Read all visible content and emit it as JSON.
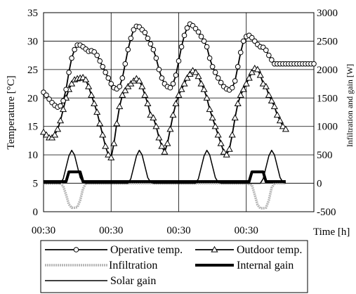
{
  "chart_data": {
    "type": "line",
    "ylabel": "Temperature [°C]",
    "y2label": "Infiltration and gain [W]",
    "xlabel": "Time [h]",
    "x_ticks": [
      "00:30",
      "00:30",
      "00:30",
      "00:30"
    ],
    "y_ticks": [
      "0",
      "5",
      "10",
      "15",
      "20",
      "25",
      "30",
      "35"
    ],
    "y2_ticks": [
      "-500",
      "0",
      "500",
      "1000",
      "1500",
      "2000",
      "2500",
      "3000"
    ],
    "ylim": [
      0,
      35
    ],
    "y2lim": [
      -500,
      3000
    ],
    "xlim": [
      0,
      96
    ],
    "x_unit": "hours",
    "grid": true,
    "legend_position": "bottom",
    "series": [
      {
        "name": "Operative temp.",
        "axis": "left",
        "marker": "circle",
        "x": [
          0,
          1,
          2,
          3,
          4,
          5,
          6,
          7,
          8,
          9,
          10,
          11,
          12,
          13,
          14,
          15,
          16,
          17,
          18,
          19,
          20,
          21,
          22,
          23,
          24,
          25,
          26,
          27,
          28,
          29,
          30,
          31,
          32,
          33,
          34,
          35,
          36,
          37,
          38,
          39,
          40,
          41,
          42,
          43,
          44,
          45,
          46,
          47,
          48,
          49,
          50,
          51,
          52,
          53,
          54,
          55,
          56,
          57,
          58,
          59,
          60,
          61,
          62,
          63,
          64,
          65,
          66,
          67,
          68,
          69,
          70,
          71,
          72,
          73,
          74,
          75,
          76,
          77,
          78,
          79,
          80,
          81,
          82,
          83,
          84,
          85,
          86,
          87,
          88,
          89,
          90,
          91,
          92,
          93,
          94,
          95,
          96
        ],
        "values": [
          21.0,
          20.5,
          19.8,
          19.2,
          18.7,
          18.4,
          18.6,
          19.5,
          21.5,
          24.5,
          27.0,
          28.5,
          29.3,
          29.3,
          29.0,
          28.6,
          28.2,
          28.3,
          28.1,
          27.5,
          26.5,
          25.5,
          24.5,
          23.5,
          22.5,
          21.8,
          21.6,
          22.0,
          23.5,
          26.0,
          28.5,
          30.5,
          32.0,
          32.6,
          32.5,
          32.0,
          31.5,
          30.5,
          29.5,
          28.5,
          27.0,
          25.0,
          23.5,
          22.5,
          22.0,
          21.8,
          22.5,
          24.0,
          26.5,
          29.0,
          31.0,
          32.3,
          33.0,
          32.7,
          32.2,
          31.6,
          30.8,
          30.0,
          29.0,
          27.0,
          25.5,
          24.5,
          23.5,
          22.7,
          22.0,
          21.6,
          21.4,
          21.8,
          23.0,
          25.5,
          28.0,
          30.0,
          30.8,
          31.0,
          30.6,
          30.0,
          29.4,
          29.0,
          28.9,
          28.4,
          27.5,
          26.7,
          26.0,
          26.0,
          26.0,
          26.0,
          26.0,
          26.0,
          26.0,
          26.0,
          26.0,
          26.0,
          26.0,
          26.0,
          26.0,
          26.0,
          26.0
        ]
      },
      {
        "name": "Outdoor temp.",
        "axis": "left",
        "marker": "triangle",
        "x": [
          0,
          1,
          2,
          3,
          4,
          5,
          6,
          7,
          8,
          9,
          10,
          11,
          12,
          13,
          14,
          15,
          16,
          17,
          18,
          19,
          20,
          21,
          22,
          23,
          24,
          25,
          26,
          27,
          28,
          29,
          30,
          31,
          32,
          33,
          34,
          35,
          36,
          37,
          38,
          39,
          40,
          41,
          42,
          43,
          44,
          45,
          46,
          47,
          48,
          49,
          50,
          51,
          52,
          53,
          54,
          55,
          56,
          57,
          58,
          59,
          60,
          61,
          62,
          63,
          64,
          65,
          66,
          67,
          68,
          69,
          70,
          71,
          72,
          73,
          74,
          75,
          76,
          77,
          78,
          79,
          80,
          81,
          82,
          83,
          84,
          85,
          86
        ],
        "values": [
          14.0,
          13.5,
          13.0,
          13.0,
          13.5,
          14.5,
          16.0,
          18.0,
          20.0,
          21.5,
          22.5,
          23.2,
          23.4,
          23.5,
          23.6,
          23.2,
          22.0,
          20.5,
          19.0,
          17.5,
          15.5,
          13.5,
          11.5,
          10.0,
          9.5,
          12.0,
          15.5,
          18.5,
          20.5,
          21.3,
          22.0,
          22.5,
          23.0,
          23.4,
          23.0,
          22.0,
          20.5,
          19.0,
          17.0,
          16.5,
          15.0,
          13.0,
          11.5,
          10.5,
          12.0,
          14.5,
          17.0,
          19.0,
          20.5,
          21.5,
          22.5,
          23.5,
          24.2,
          24.8,
          24.5,
          23.8,
          22.5,
          21.5,
          20.0,
          18.0,
          16.5,
          15.0,
          13.5,
          12.0,
          10.5,
          10.0,
          11.0,
          13.5,
          16.5,
          19.0,
          20.5,
          21.5,
          22.5,
          23.5,
          24.5,
          25.2,
          25.0,
          24.0,
          22.5,
          22.0,
          20.5,
          19.5,
          18.5,
          17.0,
          16.0,
          15.0,
          14.5
        ]
      },
      {
        "name": "Infiltration",
        "axis": "right",
        "marker": "none",
        "x": [
          0,
          3,
          6,
          7,
          8,
          9,
          10,
          11,
          12,
          13,
          14,
          15,
          24,
          48,
          72,
          74,
          75,
          76,
          77,
          78,
          79,
          80,
          81,
          82,
          84,
          86
        ],
        "values": [
          0,
          0,
          0,
          -50,
          -200,
          -370,
          -430,
          -430,
          -420,
          -300,
          -100,
          0,
          0,
          0,
          0,
          -30,
          -200,
          -380,
          -440,
          -440,
          -430,
          -300,
          -80,
          0,
          0,
          0
        ]
      },
      {
        "name": "Internal gain",
        "axis": "right",
        "marker": "none",
        "x": [
          0,
          8,
          9,
          13,
          14,
          24,
          72,
          73,
          74,
          78,
          79,
          86
        ],
        "values": [
          30,
          30,
          200,
          200,
          30,
          30,
          30,
          30,
          200,
          200,
          30,
          30
        ]
      },
      {
        "name": "Solar gain",
        "axis": "right",
        "marker": "none",
        "x": [
          0,
          6,
          7,
          8,
          9,
          10,
          11,
          12,
          13,
          14,
          15,
          16,
          24,
          30,
          31,
          32,
          33,
          34,
          35,
          36,
          37,
          38,
          39,
          40,
          48,
          54,
          55,
          56,
          57,
          58,
          59,
          60,
          61,
          62,
          63,
          64,
          72,
          77,
          78,
          79,
          80,
          81,
          82,
          83,
          84,
          85,
          86
        ],
        "values": [
          0,
          0,
          80,
          280,
          480,
          580,
          500,
          300,
          100,
          20,
          0,
          0,
          0,
          0,
          80,
          280,
          480,
          580,
          500,
          300,
          100,
          20,
          0,
          0,
          0,
          0,
          80,
          280,
          480,
          580,
          500,
          300,
          100,
          20,
          0,
          0,
          0,
          0,
          80,
          280,
          480,
          580,
          500,
          300,
          100,
          20,
          0
        ]
      }
    ]
  },
  "legend": [
    {
      "label": "Operative temp."
    },
    {
      "label": "Outdoor temp."
    },
    {
      "label": "Infiltration"
    },
    {
      "label": "Internal gain"
    },
    {
      "label": "Solar gain"
    }
  ]
}
